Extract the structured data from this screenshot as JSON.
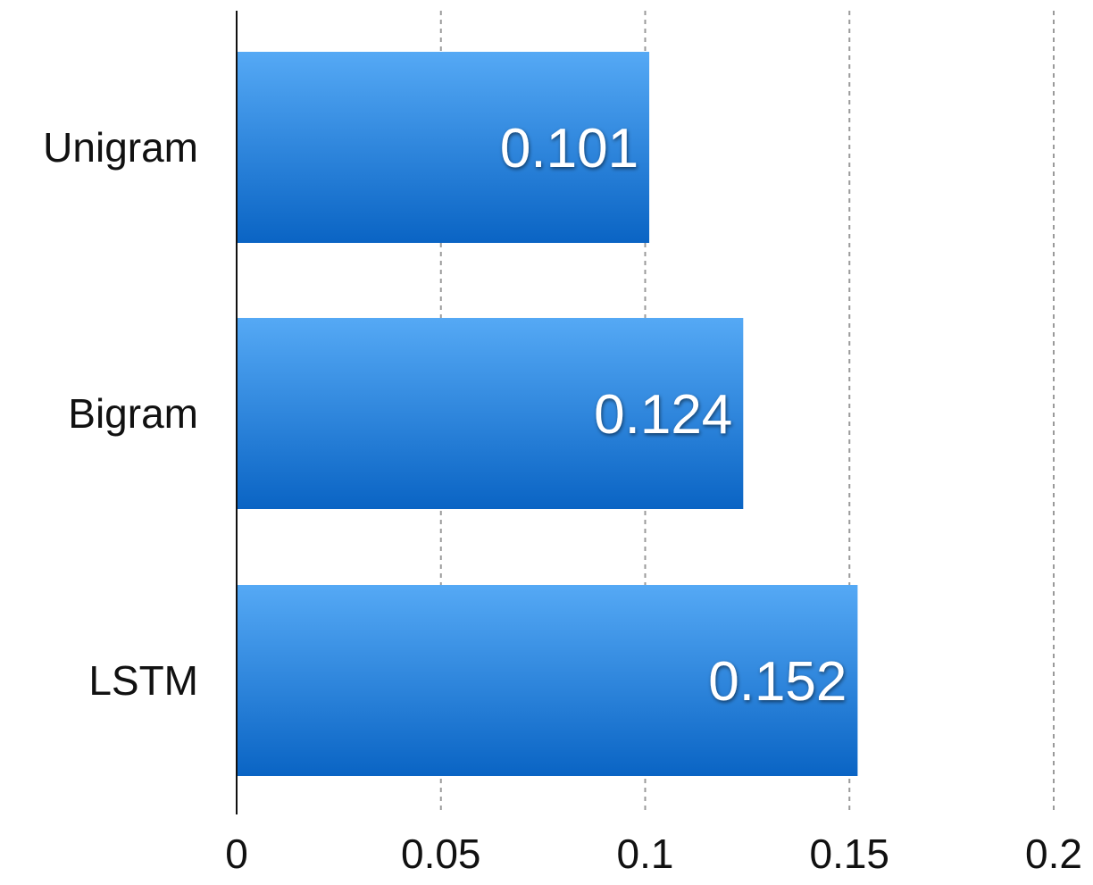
{
  "chart_data": {
    "type": "bar",
    "orientation": "horizontal",
    "categories": [
      "Unigram",
      "Bigram",
      "LSTM"
    ],
    "values": [
      0.101,
      0.124,
      0.152
    ],
    "value_labels": [
      "0.101",
      "0.124",
      "0.152"
    ],
    "x_ticks": [
      "0",
      "0.05",
      "0.1",
      "0.15",
      "0.2"
    ],
    "tick_values": [
      0,
      0.05,
      0.1,
      0.15,
      0.2
    ],
    "xlim": [
      0,
      0.2
    ],
    "grid": "vertical dashed",
    "legend": "none",
    "title": "",
    "xlabel": "",
    "ylabel": "",
    "colors": {
      "bar_top": "#55a9f5",
      "bar_bottom": "#0a64c4",
      "grid": "#9a9a9a",
      "axis": "#111111",
      "value_text": "#ffffff"
    }
  }
}
